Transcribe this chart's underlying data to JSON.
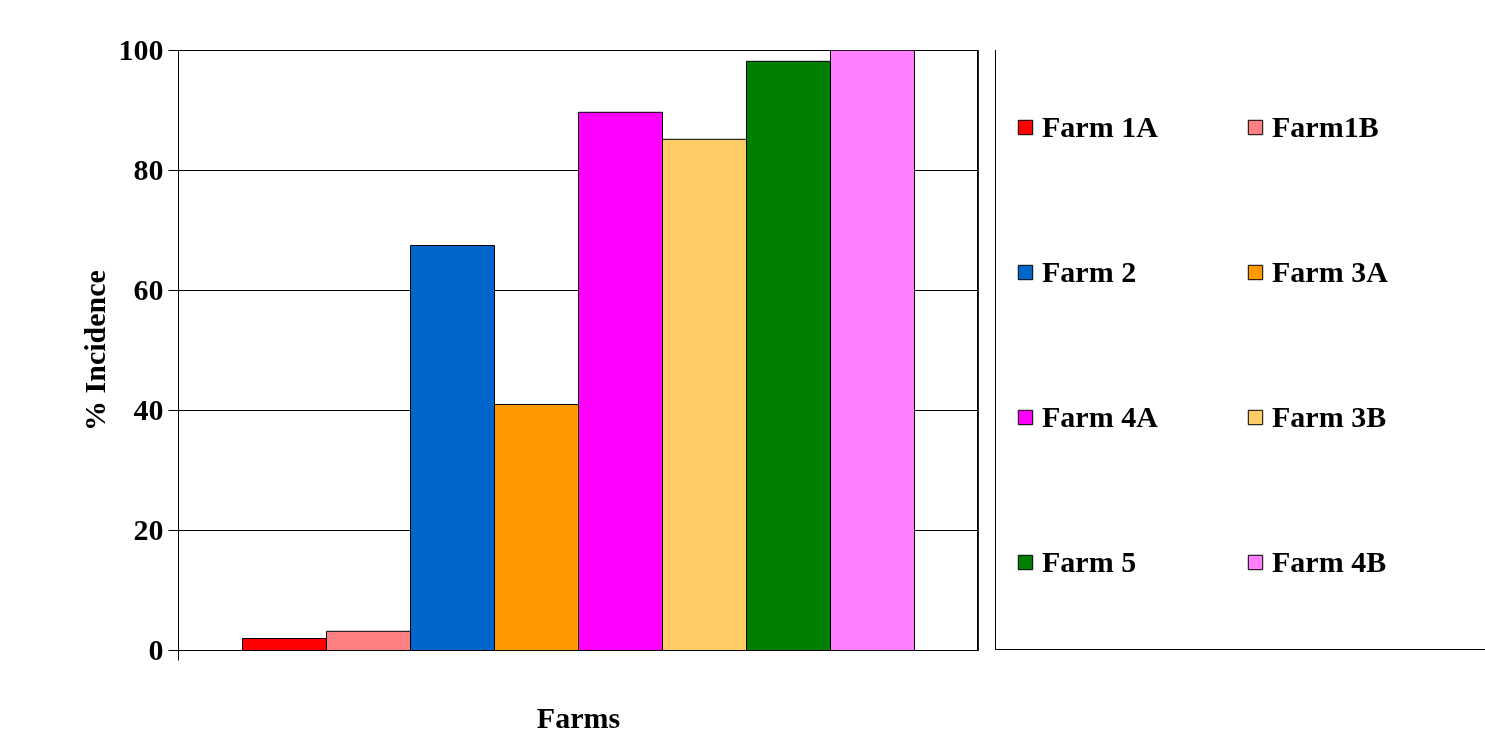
{
  "chart_data": {
    "type": "bar",
    "xlabel": "Farms",
    "ylabel": "% Incidence",
    "categories": [
      null
    ],
    "series": [
      {
        "name": "Farm 1A",
        "color": "#ff0000",
        "values": [
          2
        ]
      },
      {
        "name": "Farm1B",
        "color": "#ff8080",
        "values": [
          3.2
        ]
      },
      {
        "name": "Farm 2",
        "color": "#0066cc",
        "values": [
          67.5
        ]
      },
      {
        "name": "Farm 3A",
        "color": "#ff9900",
        "values": [
          41
        ]
      },
      {
        "name": "Farm 4A",
        "color": "#ff00ff",
        "values": [
          89.7
        ]
      },
      {
        "name": "Farm 3B",
        "color": "#ffcc66",
        "values": [
          85.2
        ]
      },
      {
        "name": "Farm 5",
        "color": "#008000",
        "values": [
          98.2
        ]
      },
      {
        "name": "Farm 4B",
        "color": "#ff80ff",
        "values": [
          100
        ]
      }
    ],
    "ylim": [
      0,
      100
    ],
    "yticks": [
      0,
      20,
      40,
      60,
      80,
      100
    ],
    "grid": "y",
    "legend": "right",
    "tick_labels": "y"
  }
}
